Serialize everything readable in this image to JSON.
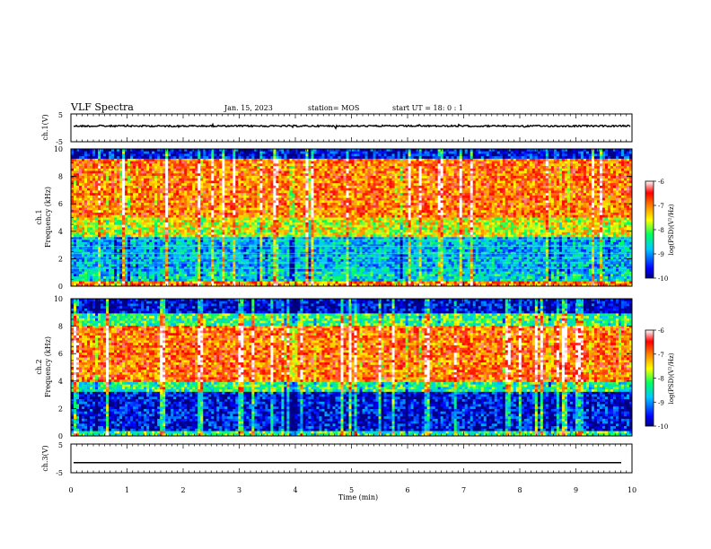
{
  "header": {
    "title": "VLF Spectra",
    "date": "Jan. 15, 2023",
    "station": "station= MOS",
    "start": "start  UT =   18: 0  : 1"
  },
  "chart_data": [
    {
      "type": "line",
      "panel": "ch1-waveform",
      "ylabel": "ch.1(V)",
      "ylim": [
        -5,
        5
      ],
      "yticks": [
        "5",
        "-5"
      ],
      "xlim": [
        0,
        10
      ],
      "series": [
        {
          "values_description_free": true,
          "level": 0
        }
      ],
      "signal_level_v": 0
    },
    {
      "type": "heatmap",
      "panel": "ch1-spectrogram",
      "ylabel": "ch.1\nFrequency (kHz)",
      "ylim": [
        0,
        10
      ],
      "yticks": [
        "0",
        "2",
        "4",
        "6",
        "8",
        "10"
      ],
      "xlim": [
        0,
        10
      ],
      "colorbar": {
        "label": "log(PSD)(V²/Hz)",
        "range": [
          -10,
          -6
        ],
        "ticks": [
          "-6",
          "-7",
          "-8",
          "-9",
          "-10"
        ]
      },
      "bands": [
        {
          "freq_khz": [
            0,
            0.4
          ],
          "log_psd": -7.0
        },
        {
          "freq_khz": [
            0.4,
            1.0
          ],
          "log_psd": -8.6
        },
        {
          "freq_khz": [
            1.0,
            3.5
          ],
          "log_psd": -8.8
        },
        {
          "freq_khz": [
            3.5,
            5.0
          ],
          "log_psd": -7.6
        },
        {
          "freq_khz": [
            5.0,
            9.2
          ],
          "log_psd": -6.9
        },
        {
          "freq_khz": [
            9.2,
            10
          ],
          "log_psd": -9.6
        }
      ]
    },
    {
      "type": "heatmap",
      "panel": "ch2-spectrogram",
      "ylabel": "ch.2\nFrequency (kHz)",
      "ylim": [
        0,
        10
      ],
      "yticks": [
        "0",
        "2",
        "4",
        "6",
        "8",
        "10"
      ],
      "xlim": [
        0,
        10
      ],
      "colorbar": {
        "label": "log(PSD)(V²/Hz)",
        "range": [
          -10,
          -6
        ],
        "ticks": [
          "-6",
          "-7",
          "-8",
          "-9",
          "-10"
        ]
      },
      "bands": [
        {
          "freq_khz": [
            0,
            0.4
          ],
          "log_psd": -8.2
        },
        {
          "freq_khz": [
            0.4,
            3.2
          ],
          "log_psd": -9.6
        },
        {
          "freq_khz": [
            3.2,
            4.0
          ],
          "log_psd": -8.3
        },
        {
          "freq_khz": [
            4.0,
            8.0
          ],
          "log_psd": -6.9
        },
        {
          "freq_khz": [
            8.0,
            9.0
          ],
          "log_psd": -8.2
        },
        {
          "freq_khz": [
            9.0,
            10
          ],
          "log_psd": -9.7
        }
      ]
    },
    {
      "type": "line",
      "panel": "ch3-waveform",
      "ylabel": "ch.3(V)",
      "ylim": [
        -5,
        5
      ],
      "yticks": [
        "5",
        "-5"
      ],
      "xlim": [
        0,
        10
      ],
      "signal_level_v": -1.5,
      "xlabel": "Time  (min)",
      "xticks": [
        "0",
        "1",
        "2",
        "3",
        "4",
        "5",
        "6",
        "7",
        "8",
        "9",
        "10"
      ]
    }
  ]
}
